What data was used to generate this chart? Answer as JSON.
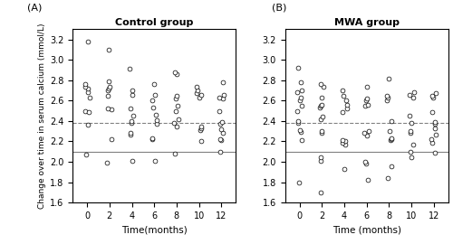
{
  "title_A": "Control group",
  "title_B": "MWA group",
  "label_A": "(A)",
  "label_B": "(B)",
  "xlabel_A": "Time(months)",
  "xlabel_B": "Time (months)",
  "ylabel": "Change over time in serum calcium (mmol/L)",
  "ylim": [
    1.6,
    3.3
  ],
  "yticks": [
    1.6,
    1.8,
    2.0,
    2.2,
    2.4,
    2.6,
    2.8,
    3.0,
    3.2
  ],
  "xticks": [
    0,
    2,
    4,
    6,
    8,
    10,
    12
  ],
  "upper_line": 2.38,
  "lower_line": 2.1,
  "scatter_color": "white",
  "scatter_edgecolor": "black",
  "scatter_size": 12,
  "data_A": {
    "0": [
      2.07,
      2.63,
      2.68,
      2.72,
      2.74,
      2.76,
      2.5,
      2.49,
      2.36,
      3.18
    ],
    "2": [
      1.99,
      2.22,
      2.51,
      2.52,
      2.65,
      2.7,
      2.72,
      2.74,
      2.79,
      3.1
    ],
    "4": [
      2.01,
      2.27,
      2.28,
      2.38,
      2.4,
      2.45,
      2.52,
      2.66,
      2.7,
      2.91
    ],
    "6": [
      2.01,
      2.22,
      2.23,
      2.37,
      2.41,
      2.46,
      2.53,
      2.6,
      2.66,
      2.76
    ],
    "8": [
      2.08,
      2.35,
      2.38,
      2.42,
      2.5,
      2.55,
      2.62,
      2.65,
      2.86,
      2.88
    ],
    "10": [
      2.2,
      2.31,
      2.33,
      2.35,
      2.63,
      2.66,
      2.67,
      2.7,
      2.74
    ],
    "12": [
      2.1,
      2.21,
      2.22,
      2.28,
      2.32,
      2.37,
      2.39,
      2.5,
      2.62,
      2.63,
      2.66,
      2.78
    ]
  },
  "data_B": {
    "0": [
      1.8,
      2.21,
      2.29,
      2.31,
      2.38,
      2.4,
      2.5,
      2.55,
      2.6,
      2.63,
      2.68,
      2.7,
      2.78,
      2.92
    ],
    "2": [
      1.7,
      2.01,
      2.04,
      2.28,
      2.3,
      2.42,
      2.44,
      2.53,
      2.55,
      2.56,
      2.63,
      2.74,
      2.76
    ],
    "4": [
      1.93,
      2.17,
      2.19,
      2.2,
      2.21,
      2.49,
      2.52,
      2.56,
      2.6,
      2.65,
      2.7
    ],
    "6": [
      1.82,
      1.98,
      2.0,
      2.26,
      2.28,
      2.3,
      2.55,
      2.56,
      2.6,
      2.62,
      2.74
    ],
    "8": [
      1.84,
      1.96,
      2.21,
      2.22,
      2.23,
      2.3,
      2.4,
      2.6,
      2.63,
      2.65,
      2.82
    ],
    "10": [
      2.04,
      2.1,
      2.17,
      2.28,
      2.3,
      2.38,
      2.45,
      2.63,
      2.66,
      2.68
    ],
    "12": [
      2.09,
      2.19,
      2.22,
      2.27,
      2.33,
      2.37,
      2.39,
      2.49,
      2.63,
      2.65,
      2.67
    ]
  }
}
